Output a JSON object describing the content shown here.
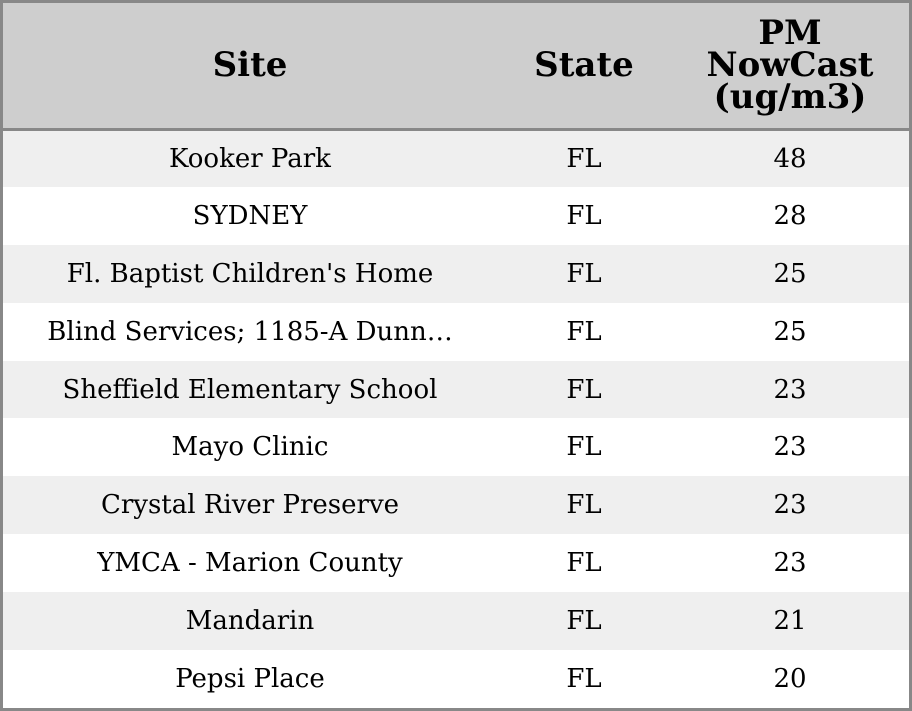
{
  "chart_data": {
    "type": "table",
    "columns": [
      "Site",
      "State",
      "PM\nNowCast\n(ug/m3)"
    ],
    "rows": [
      {
        "site": "Kooker Park",
        "state": "FL",
        "pm": 48
      },
      {
        "site": "SYDNEY",
        "state": "FL",
        "pm": 28
      },
      {
        "site": "Fl. Baptist Children's Home",
        "state": "FL",
        "pm": 25
      },
      {
        "site": "Blind Services; 1185-A Dunn…",
        "state": "FL",
        "pm": 25
      },
      {
        "site": "Sheffield Elementary School",
        "state": "FL",
        "pm": 23
      },
      {
        "site": "Mayo Clinic",
        "state": "FL",
        "pm": 23
      },
      {
        "site": "Crystal River Preserve",
        "state": "FL",
        "pm": 23
      },
      {
        "site": "YMCA - Marion County",
        "state": "FL",
        "pm": 23
      },
      {
        "site": "Mandarin",
        "state": "FL",
        "pm": 21
      },
      {
        "site": "Pepsi Place",
        "state": "FL",
        "pm": 20
      }
    ]
  },
  "colors": {
    "header_background": "#cecece",
    "border": "#888888",
    "row_odd": "#efefef",
    "row_even": "#ffffff",
    "text": "#000000"
  }
}
